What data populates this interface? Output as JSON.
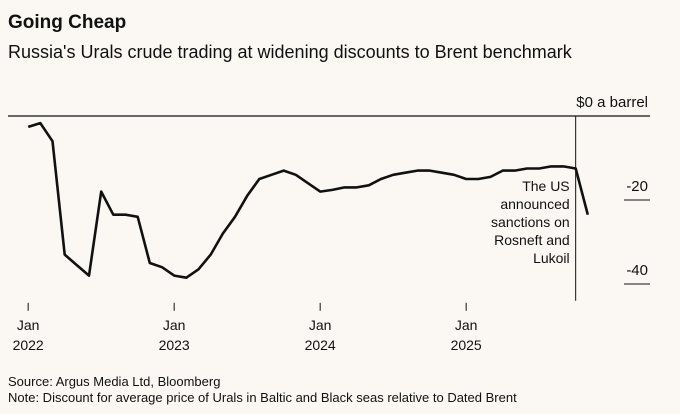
{
  "chart_data": {
    "type": "line",
    "title": "Going Cheap",
    "subtitle": "Russia's Urals crude trading at widening discounts to Brent benchmark",
    "source": "Source: Argus Media Ltd, Bloomberg",
    "note": "Note: Discount for average price of Urals in Baltic and Black seas relative to Dated Brent",
    "x": [
      "2022-01",
      "2022-02",
      "2022-03",
      "2022-04",
      "2022-05",
      "2022-06",
      "2022-07",
      "2022-08",
      "2022-09",
      "2022-10",
      "2022-11",
      "2022-12",
      "2023-01",
      "2023-02",
      "2023-03",
      "2023-04",
      "2023-05",
      "2023-06",
      "2023-07",
      "2023-08",
      "2023-09",
      "2023-10",
      "2023-11",
      "2023-12",
      "2024-01",
      "2024-02",
      "2024-03",
      "2024-04",
      "2024-05",
      "2024-06",
      "2024-07",
      "2024-08",
      "2024-09",
      "2024-10",
      "2024-11",
      "2024-12",
      "2025-01",
      "2025-02",
      "2025-03",
      "2025-04",
      "2025-05",
      "2025-06",
      "2025-07",
      "2025-08",
      "2025-09",
      "2025-10",
      "2025-11"
    ],
    "series": [
      {
        "color": "#111111",
        "values": [
          -2.6,
          -1.7,
          -6,
          -33,
          -35.5,
          -38,
          -18,
          -23.5,
          -23.5,
          -24,
          -35,
          -36,
          -38,
          -38.5,
          -36.5,
          -33,
          -28,
          -24,
          -19,
          -15,
          -14,
          -13,
          -14,
          -16,
          -18,
          -17.6,
          -17,
          -17,
          -16.5,
          -15,
          -14,
          -13.5,
          -13,
          -13,
          -13.5,
          -14,
          -15,
          -15,
          -14.5,
          -13,
          -13,
          -12.5,
          -12.5,
          -12,
          -12,
          -12.5,
          -23.5
        ]
      }
    ],
    "xlim": [
      "2021-12",
      "2025-12"
    ],
    "xticks": [
      {
        "value": "2022-01",
        "label": [
          "Jan",
          "2022"
        ]
      },
      {
        "value": "2023-01",
        "label": [
          "Jan",
          "2023"
        ]
      },
      {
        "value": "2024-01",
        "label": [
          "Jan",
          "2024"
        ]
      },
      {
        "value": "2025-01",
        "label": [
          "Jan",
          "2025"
        ]
      }
    ],
    "ylim": [
      -44,
      0
    ],
    "yticks": [
      {
        "value": 0,
        "label": "$0 a barrel"
      },
      -20,
      -40
    ],
    "annotation": {
      "x": "2025-10",
      "text": [
        "The US",
        "announced",
        "sanctions on",
        "Rosneft and",
        "Lukoil"
      ]
    }
  }
}
